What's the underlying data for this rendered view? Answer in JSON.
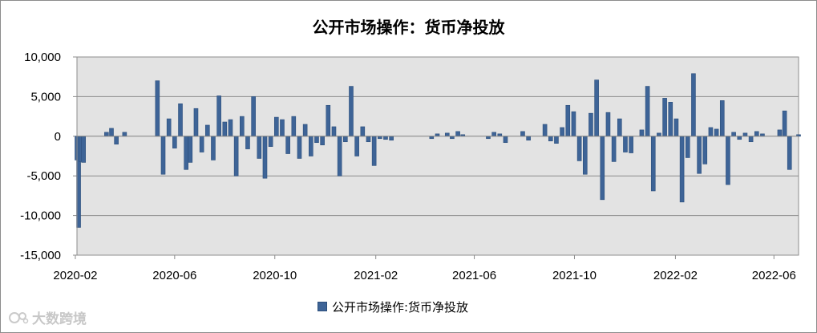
{
  "chart_data": {
    "type": "bar",
    "title": "公开市场操作：货币净投放",
    "xlabel": "",
    "ylabel": "",
    "ylim": [
      -15000,
      10000
    ],
    "yticks": [
      "10,000",
      "5,000",
      "0",
      "-5,000",
      "-10,000",
      "-15,000"
    ],
    "ytick_values": [
      10000,
      5000,
      0,
      -5000,
      -10000,
      -15000
    ],
    "grid": true,
    "legend_position": "bottom",
    "x_start": "2020-02-03",
    "x_end": "2022-07-01",
    "xticks": [
      {
        "label": "2020-02",
        "date": "2020-02-01"
      },
      {
        "label": "2020-06",
        "date": "2020-06-01"
      },
      {
        "label": "2020-10",
        "date": "2020-10-01"
      },
      {
        "label": "2021-02",
        "date": "2021-02-01"
      },
      {
        "label": "2021-06",
        "date": "2021-06-01"
      },
      {
        "label": "2021-10",
        "date": "2021-10-01"
      },
      {
        "label": "2022-02",
        "date": "2022-02-01"
      },
      {
        "label": "2022-06",
        "date": "2022-06-01"
      }
    ],
    "series": [
      {
        "name": "公开市场操作:货币净投放",
        "color": "#3e6497",
        "points": [
          [
            "2020-02-03",
            -3000
          ],
          [
            "2020-02-05",
            -11500
          ],
          [
            "2020-02-08",
            -3200
          ],
          [
            "2020-02-11",
            -3300
          ],
          [
            "2020-03-10",
            500
          ],
          [
            "2020-03-16",
            1000
          ],
          [
            "2020-03-22",
            -1000
          ],
          [
            "2020-04-01",
            500
          ],
          [
            "2020-05-11",
            7000
          ],
          [
            "2020-05-18",
            -4800
          ],
          [
            "2020-05-25",
            2200
          ],
          [
            "2020-06-01",
            -1500
          ],
          [
            "2020-06-08",
            4100
          ],
          [
            "2020-06-15",
            -4200
          ],
          [
            "2020-06-20",
            -3300
          ],
          [
            "2020-06-27",
            3500
          ],
          [
            "2020-07-04",
            -2000
          ],
          [
            "2020-07-11",
            1400
          ],
          [
            "2020-07-18",
            -3000
          ],
          [
            "2020-07-25",
            5100
          ],
          [
            "2020-08-01",
            1800
          ],
          [
            "2020-08-08",
            2100
          ],
          [
            "2020-08-15",
            -5000
          ],
          [
            "2020-08-22",
            2500
          ],
          [
            "2020-08-29",
            -1600
          ],
          [
            "2020-09-05",
            5000
          ],
          [
            "2020-09-12",
            -2800
          ],
          [
            "2020-09-19",
            -5300
          ],
          [
            "2020-09-26",
            -1300
          ],
          [
            "2020-10-03",
            2400
          ],
          [
            "2020-10-10",
            2100
          ],
          [
            "2020-10-17",
            -2200
          ],
          [
            "2020-10-24",
            2500
          ],
          [
            "2020-10-31",
            -2800
          ],
          [
            "2020-11-07",
            1500
          ],
          [
            "2020-11-14",
            -2500
          ],
          [
            "2020-11-21",
            -800
          ],
          [
            "2020-11-28",
            -1100
          ],
          [
            "2020-12-05",
            3900
          ],
          [
            "2020-12-12",
            1200
          ],
          [
            "2020-12-19",
            -5000
          ],
          [
            "2020-12-26",
            -700
          ],
          [
            "2021-01-02",
            6300
          ],
          [
            "2021-01-09",
            -2500
          ],
          [
            "2021-01-16",
            1200
          ],
          [
            "2021-01-23",
            -700
          ],
          [
            "2021-01-30",
            -3700
          ],
          [
            "2021-02-06",
            -300
          ],
          [
            "2021-02-13",
            -400
          ],
          [
            "2021-02-20",
            -500
          ],
          [
            "2021-04-10",
            -300
          ],
          [
            "2021-04-17",
            300
          ],
          [
            "2021-04-29",
            400
          ],
          [
            "2021-05-05",
            -300
          ],
          [
            "2021-05-12",
            600
          ],
          [
            "2021-05-18",
            200
          ],
          [
            "2021-06-18",
            -300
          ],
          [
            "2021-06-25",
            500
          ],
          [
            "2021-07-02",
            300
          ],
          [
            "2021-07-09",
            -800
          ],
          [
            "2021-07-30",
            600
          ],
          [
            "2021-08-06",
            -500
          ],
          [
            "2021-08-26",
            1500
          ],
          [
            "2021-09-02",
            -600
          ],
          [
            "2021-09-09",
            -900
          ],
          [
            "2021-09-16",
            1100
          ],
          [
            "2021-09-23",
            3900
          ],
          [
            "2021-09-30",
            3100
          ],
          [
            "2021-10-07",
            -3100
          ],
          [
            "2021-10-14",
            -4800
          ],
          [
            "2021-10-21",
            2900
          ],
          [
            "2021-10-28",
            7100
          ],
          [
            "2021-11-04",
            -8000
          ],
          [
            "2021-11-11",
            3000
          ],
          [
            "2021-11-18",
            -3200
          ],
          [
            "2021-11-25",
            2200
          ],
          [
            "2021-12-02",
            -2000
          ],
          [
            "2021-12-09",
            -2100
          ],
          [
            "2021-12-22",
            800
          ],
          [
            "2021-12-29",
            6300
          ],
          [
            "2022-01-05",
            -6900
          ],
          [
            "2022-01-12",
            400
          ],
          [
            "2022-01-19",
            4800
          ],
          [
            "2022-01-26",
            4300
          ],
          [
            "2022-02-02",
            2200
          ],
          [
            "2022-02-09",
            -8300
          ],
          [
            "2022-02-16",
            -2700
          ],
          [
            "2022-02-23",
            7900
          ],
          [
            "2022-03-02",
            -4700
          ],
          [
            "2022-03-09",
            -3500
          ],
          [
            "2022-03-16",
            1100
          ],
          [
            "2022-03-23",
            900
          ],
          [
            "2022-03-30",
            4500
          ],
          [
            "2022-04-06",
            -6100
          ],
          [
            "2022-04-13",
            500
          ],
          [
            "2022-04-20",
            -400
          ],
          [
            "2022-04-27",
            400
          ],
          [
            "2022-05-04",
            -700
          ],
          [
            "2022-05-11",
            600
          ],
          [
            "2022-05-18",
            300
          ],
          [
            "2022-06-08",
            800
          ],
          [
            "2022-06-14",
            3200
          ],
          [
            "2022-06-20",
            -4200
          ],
          [
            "2022-07-01",
            200
          ]
        ]
      }
    ]
  },
  "legend": {
    "label": "公开市场操作:货币净投放"
  },
  "watermark": {
    "text": "大数跨境"
  }
}
